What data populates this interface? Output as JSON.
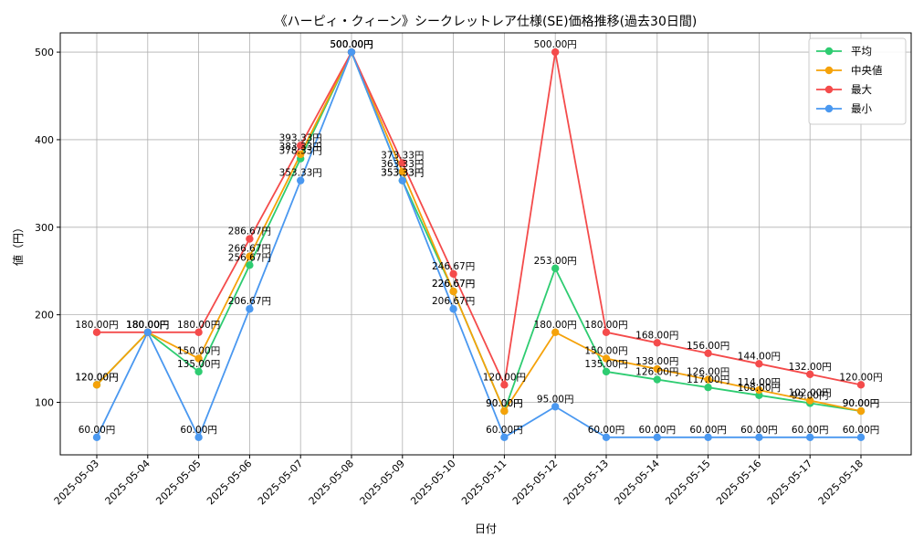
{
  "chart_data": {
    "type": "line",
    "title": "《ハーピィ・クィーン》シークレットレア仕様(SE)価格推移(過去30日間)",
    "xlabel": "日付",
    "ylabel": "値（円）",
    "ylim": [
      40,
      522
    ],
    "yticks": [
      100,
      200,
      300,
      400,
      500
    ],
    "grid": true,
    "legend_position": "top-right",
    "value_suffix": "円",
    "categories": [
      "2025-05-03",
      "2025-05-04",
      "2025-05-05",
      "2025-05-06",
      "2025-05-07",
      "2025-05-08",
      "2025-05-09",
      "2025-05-10",
      "2025-05-11",
      "2025-05-12",
      "2025-05-13",
      "2025-05-14",
      "2025-05-15",
      "2025-05-16",
      "2025-05-17",
      "2025-05-18"
    ],
    "series": [
      {
        "name": "平均",
        "color": "#2ecc71",
        "values": [
          120,
          180,
          135,
          256.67,
          378.33,
          500,
          353.33,
          226.67,
          90,
          253,
          135,
          126,
          117,
          108,
          99,
          90
        ]
      },
      {
        "name": "中央値",
        "color": "#f5a20a",
        "values": [
          120,
          180,
          150,
          266.67,
          383.33,
          500,
          363.33,
          226.67,
          90,
          180,
          150,
          138,
          126,
          114,
          102,
          90
        ]
      },
      {
        "name": "最大",
        "color": "#f44b4b",
        "values": [
          180,
          180,
          180,
          286.67,
          393.33,
          500,
          373.33,
          246.67,
          120,
          500,
          180,
          168,
          156,
          144,
          132,
          120
        ]
      },
      {
        "name": "最小",
        "color": "#4a98f0",
        "values": [
          60,
          180,
          60,
          206.67,
          353.33,
          500,
          353.33,
          206.67,
          60,
          95,
          60,
          60,
          60,
          60,
          60,
          60
        ]
      }
    ]
  }
}
